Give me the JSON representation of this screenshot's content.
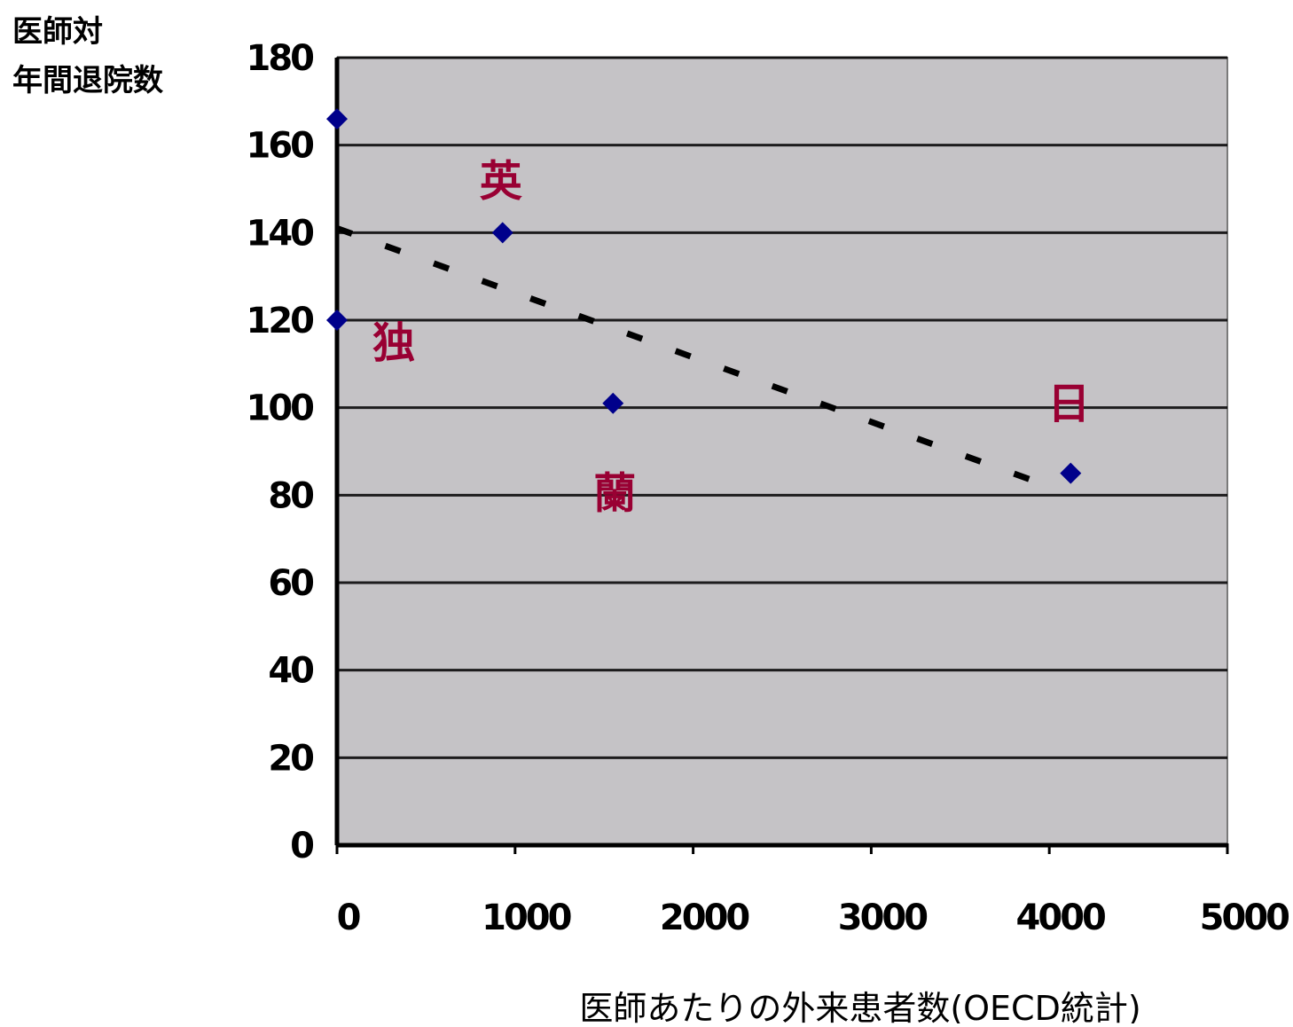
{
  "chart_data": {
    "type": "scatter",
    "title": "",
    "ylabel_lines": [
      "医師対",
      "年間退院数"
    ],
    "xlabel": "医師あたりの外来患者数(OECD統計)",
    "xlim": [
      0,
      5000
    ],
    "ylim": [
      0,
      180
    ],
    "x_ticks": [
      "0",
      "1000",
      "2000",
      "3000",
      "4000",
      "5000"
    ],
    "y_ticks": [
      "0",
      "20",
      "40",
      "60",
      "80",
      "100",
      "120",
      "140",
      "160",
      "180"
    ],
    "grid": true,
    "points": [
      {
        "label": "",
        "x": 0,
        "y": 166
      },
      {
        "label": "独",
        "x": 0,
        "y": 120
      },
      {
        "label": "英",
        "x": 930,
        "y": 140
      },
      {
        "label": "蘭",
        "x": 1550,
        "y": 101
      },
      {
        "label": "日",
        "x": 4120,
        "y": 85
      }
    ],
    "trendline": {
      "x": [
        0,
        4000
      ],
      "y": [
        141,
        82
      ]
    },
    "colors": {
      "plot_background": "#c5c3c6",
      "gridline": "#000000",
      "point": "#00008b",
      "point_label": "#990033",
      "trendline": "#000000"
    }
  }
}
